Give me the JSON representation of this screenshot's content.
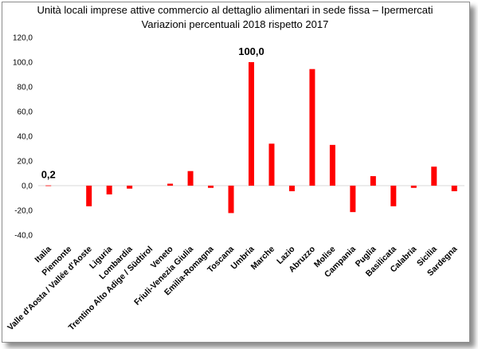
{
  "chart_data": {
    "type": "bar",
    "title": "Unità locali imprese attive commercio al dettaglio alimentari in sede fissa – Ipermercati",
    "subtitle": "Variazioni percentuali 2018 rispetto 2017",
    "xlabel": "",
    "ylabel": "",
    "ylim": [
      -40,
      120
    ],
    "yticks": [
      "120,0",
      "100,0",
      "80,0",
      "60,0",
      "40,0",
      "20,0",
      "0,0",
      "-20,0",
      "-40,0"
    ],
    "grid": false,
    "legend": "none",
    "bar_color": "#ff0000",
    "categories": [
      "Italia",
      "Piemonte",
      "Valle d'Aosta / Vallée d'Aoste",
      "Liguria",
      "Lombardia",
      "Trentino Alto Adige / Südtirol",
      "Veneto",
      "Friuli-Venezia Giulia",
      "Emilia-Romagna",
      "Toscana",
      "Umbria",
      "Marche",
      "Lazio",
      "Abruzzo",
      "Molise",
      "Campania",
      "Puglia",
      "Basilicata",
      "Calabria",
      "Sicilia",
      "Sardegna"
    ],
    "values": [
      0.2,
      0,
      -16.7,
      -7.1,
      -2.4,
      0,
      1.6,
      11.8,
      -1.8,
      -22.2,
      100.0,
      34.0,
      -4.5,
      94.4,
      33.0,
      -21.4,
      7.7,
      -16.7,
      -1.8,
      15.4,
      -4.5
    ],
    "data_labels": [
      {
        "category": "Italia",
        "text": "0,2"
      },
      {
        "category": "Umbria",
        "text": "100,0"
      }
    ]
  }
}
